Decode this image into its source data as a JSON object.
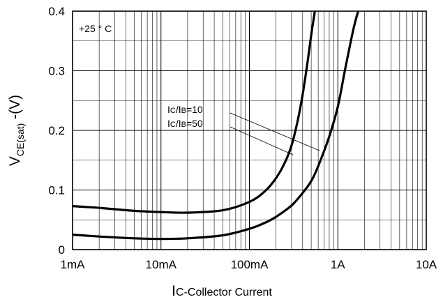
{
  "chart_data": {
    "type": "line",
    "xscale": "log",
    "xlim": [
      0.001,
      10
    ],
    "ylim": [
      0,
      0.4
    ],
    "x_ticks": [
      0.001,
      0.01,
      0.1,
      1,
      10
    ],
    "x_tick_labels": [
      "1mA",
      "10mA",
      "100mA",
      "1A",
      "10A"
    ],
    "y_ticks": [
      0,
      0.1,
      0.2,
      0.3,
      0.4
    ],
    "y_tick_labels": [
      "0",
      "0.1",
      "0.2",
      "0.3",
      "0.4"
    ],
    "xlabel_prefix": "I",
    "xlabel_rest": "C-Collector Current",
    "ylabel_main": "V",
    "ylabel_sub": "CE(sat)",
    "ylabel_suffix": " -(V)",
    "grid": true,
    "condition_label": "+25 ° C",
    "series": [
      {
        "name": "Ic/Ib=10",
        "x": [
          0.001,
          0.002,
          0.005,
          0.01,
          0.02,
          0.05,
          0.1,
          0.15,
          0.2,
          0.3,
          0.4,
          0.5,
          0.6,
          0.8,
          1,
          1.2,
          1.5,
          1.7
        ],
        "y": [
          0.025,
          0.022,
          0.019,
          0.018,
          0.019,
          0.024,
          0.035,
          0.045,
          0.055,
          0.074,
          0.095,
          0.115,
          0.14,
          0.19,
          0.24,
          0.3,
          0.37,
          0.4
        ]
      },
      {
        "name": "Ic/Ib=50",
        "x": [
          0.001,
          0.002,
          0.005,
          0.01,
          0.02,
          0.05,
          0.1,
          0.15,
          0.2,
          0.25,
          0.3,
          0.35,
          0.4,
          0.45,
          0.5,
          0.55
        ],
        "y": [
          0.073,
          0.07,
          0.065,
          0.063,
          0.062,
          0.066,
          0.08,
          0.098,
          0.12,
          0.145,
          0.175,
          0.215,
          0.26,
          0.31,
          0.36,
          0.4
        ]
      }
    ],
    "legend": [
      {
        "prefix": "I",
        "sub1": "C",
        "mid": "/I",
        "sub2": "B",
        "suffix": "=10"
      },
      {
        "prefix": "I",
        "sub1": "C",
        "mid": "/I",
        "sub2": "B",
        "suffix": "=50"
      }
    ]
  }
}
